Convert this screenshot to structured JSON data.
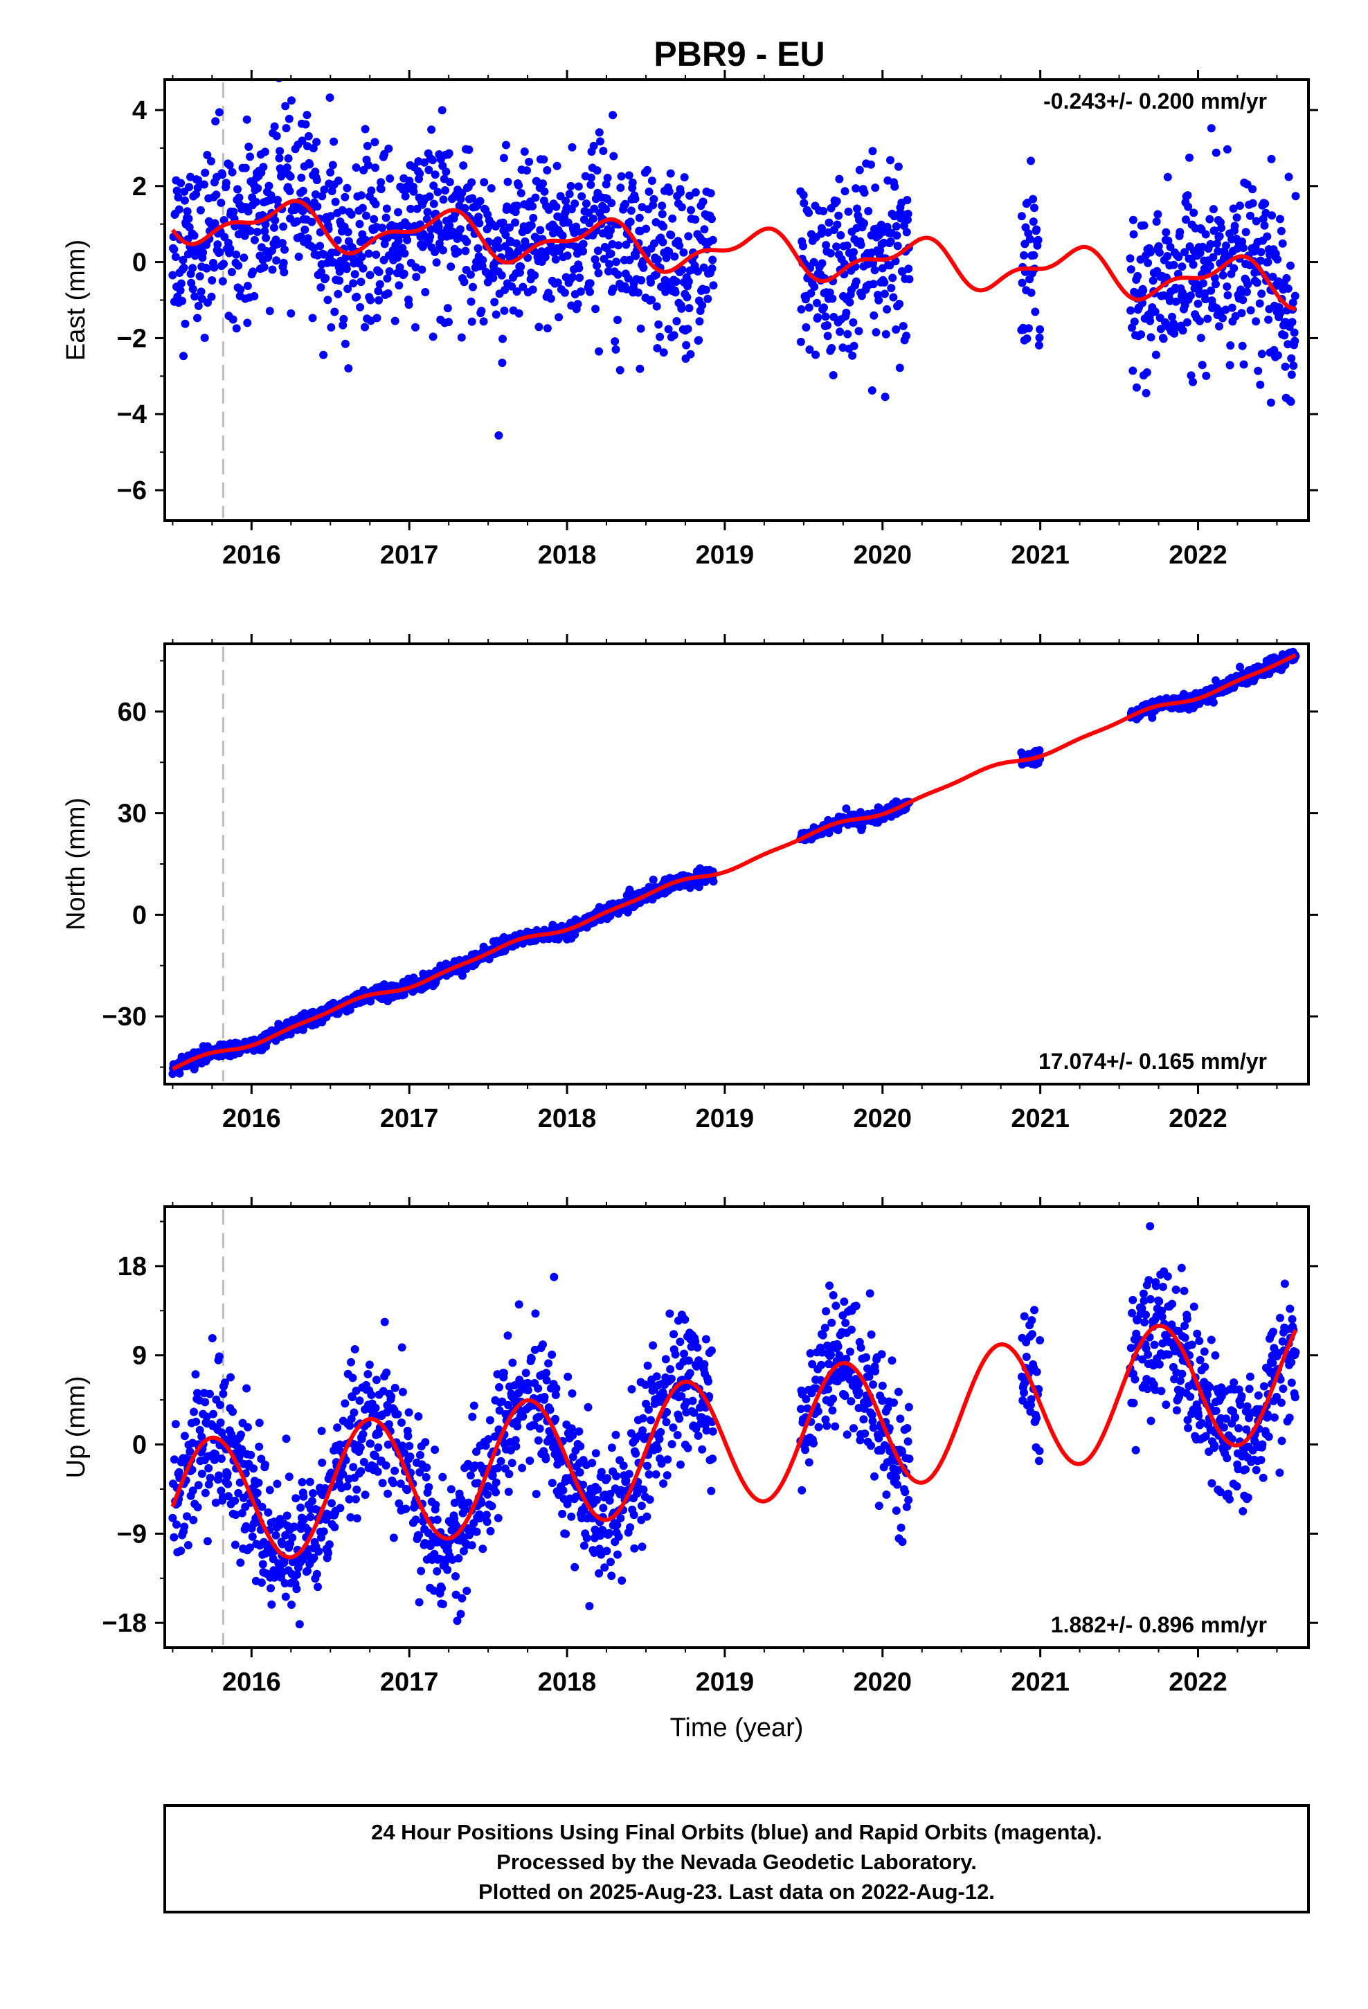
{
  "title": "PBR9 - EU",
  "chart_data": [
    {
      "type": "scatter",
      "ylabel": "East (mm)",
      "xlim": [
        2015.45,
        2022.7
      ],
      "ylim": [
        -6.8,
        4.8
      ],
      "yticks": [
        4,
        2,
        0,
        -2,
        -4,
        -6
      ],
      "ytick_labels": [
        "4",
        "2",
        "0",
        "−2",
        "−4",
        "−6"
      ],
      "xticks": [
        2016,
        2017,
        2018,
        2019,
        2020,
        2021,
        2022
      ],
      "xtick_labels": [
        "2016",
        "2017",
        "2018",
        "2019",
        "2020",
        "2021",
        "2022"
      ],
      "rate_label": "-0.243+/- 0.200 mm/yr",
      "rate_position": "top-right",
      "event_line_x": 2015.82,
      "data_periods": [
        [
          2015.5,
          2018.93
        ],
        [
          2019.48,
          2020.17
        ],
        [
          2020.88,
          2021.0
        ],
        [
          2021.57,
          2022.62
        ]
      ],
      "fit": {
        "trend": -0.243,
        "offset": 0.3,
        "annual_amp": 0.5,
        "annual_phase": 0.95,
        "semiannual_amp": 0.25,
        "semiannual_phase": 0.7
      },
      "scatter_sd": 1.15,
      "series": [
        {
          "name": "Final Orbits",
          "color": "#0000ff",
          "role": "daily positions"
        },
        {
          "name": "model",
          "color": "#ff0000",
          "role": "fit"
        }
      ]
    },
    {
      "type": "scatter",
      "ylabel": "North (mm)",
      "xlim": [
        2015.45,
        2022.7
      ],
      "ylim": [
        -50,
        80
      ],
      "yticks": [
        60,
        30,
        0,
        -30
      ],
      "ytick_labels": [
        "60",
        "30",
        "0",
        "−30"
      ],
      "xticks": [
        2016,
        2017,
        2018,
        2019,
        2020,
        2021,
        2022
      ],
      "xtick_labels": [
        "2016",
        "2017",
        "2018",
        "2019",
        "2020",
        "2021",
        "2022"
      ],
      "rate_label": "17.074+/- 0.165 mm/yr",
      "rate_position": "bottom-right",
      "event_line_x": 2015.82,
      "data_periods": [
        [
          2015.5,
          2018.93
        ],
        [
          2019.48,
          2020.17
        ],
        [
          2020.88,
          2021.0
        ],
        [
          2021.57,
          2022.62
        ]
      ],
      "fit": {
        "trend": 17.074,
        "offset": 13.8,
        "annual_amp": 1.0,
        "annual_phase": 0.35,
        "semiannual_amp": 0.4,
        "semiannual_phase": 0.1
      },
      "scatter_sd": 1.0,
      "series": [
        {
          "name": "Final Orbits",
          "color": "#0000ff",
          "role": "daily positions"
        },
        {
          "name": "model",
          "color": "#ff0000",
          "role": "fit"
        }
      ]
    },
    {
      "type": "scatter",
      "ylabel": "Up (mm)",
      "xlim": [
        2015.45,
        2022.7
      ],
      "ylim": [
        -20.5,
        24
      ],
      "yticks": [
        18,
        9,
        0,
        -9,
        -18
      ],
      "ytick_labels": [
        "18",
        "9",
        "0",
        "−9",
        "−18"
      ],
      "xticks": [
        2016,
        2017,
        2018,
        2019,
        2020,
        2021,
        2022
      ],
      "xtick_labels": [
        "2016",
        "2017",
        "2018",
        "2019",
        "2020",
        "2021",
        "2022"
      ],
      "xlabel": "Time (year)",
      "rate_label": "1.882+/- 0.896 mm/yr",
      "rate_position": "bottom-right",
      "event_line_x": 2015.82,
      "data_periods": [
        [
          2015.5,
          2018.93
        ],
        [
          2019.48,
          2020.17
        ],
        [
          2020.88,
          2021.0
        ],
        [
          2021.57,
          2022.62
        ]
      ],
      "fit": {
        "trend": 1.882,
        "offset": 0.3,
        "annual_amp": 6.5,
        "annual_phase": 0.5,
        "semiannual_amp": 0.0,
        "semiannual_phase": 0.0
      },
      "scatter_sd": 3.6,
      "series": [
        {
          "name": "Final Orbits",
          "color": "#0000ff",
          "role": "daily positions"
        },
        {
          "name": "model",
          "color": "#ff0000",
          "role": "fit"
        }
      ]
    }
  ],
  "footer": {
    "line1": "24 Hour Positions Using Final Orbits (blue) and Rapid Orbits (magenta).",
    "line2": "Processed by the Nevada Geodetic Laboratory.",
    "line3": "Plotted on 2025-Aug-23. Last data on 2022-Aug-12."
  }
}
